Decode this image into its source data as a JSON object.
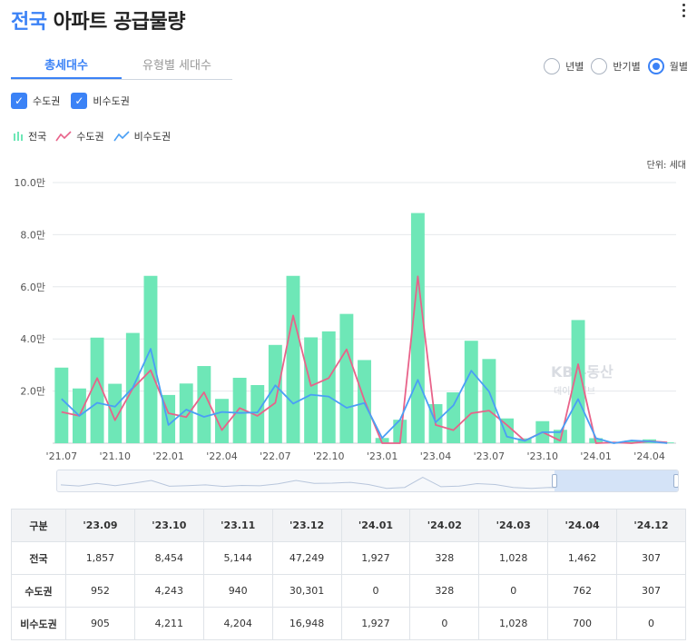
{
  "header": {
    "title_accent": "전국",
    "title_rest": " 아파트 공급물량"
  },
  "tabs": [
    {
      "label": "총세대수",
      "active": true
    },
    {
      "label": "유형별 세대수",
      "active": false
    }
  ],
  "period_options": [
    {
      "label": "년별",
      "selected": false
    },
    {
      "label": "반기별",
      "selected": false
    },
    {
      "label": "월별",
      "selected": true
    }
  ],
  "region_filters": [
    {
      "label": "수도권",
      "checked": true
    },
    {
      "label": "비수도권",
      "checked": true
    }
  ],
  "legend": [
    {
      "label": "전국",
      "color": "#6ee7b7"
    },
    {
      "label": "수도권",
      "color": "#e8638a"
    },
    {
      "label": "비수도권",
      "color": "#4a9ff5"
    }
  ],
  "unit_label": "단위: 세대",
  "watermark": {
    "logo": "KB부동산",
    "sub": "데이터허브"
  },
  "chart_data": {
    "type": "bar+line",
    "categories": [
      "21.07",
      "21.08",
      "21.09",
      "21.10",
      "21.11",
      "21.12",
      "22.01",
      "22.02",
      "22.03",
      "22.04",
      "22.05",
      "22.06",
      "22.07",
      "22.08",
      "22.09",
      "22.10",
      "22.11",
      "22.12",
      "23.01",
      "23.02",
      "23.03",
      "23.04",
      "23.05",
      "23.06",
      "23.07",
      "23.08",
      "23.09",
      "23.10",
      "23.11",
      "23.12",
      "24.01",
      "24.02",
      "24.03",
      "24.04",
      "24.12"
    ],
    "x_tick_labels": [
      "'21.07",
      "'21.10",
      "'22.01",
      "'22.04",
      "'22.07",
      "'22.10",
      "'23.01",
      "'23.04",
      "'23.07",
      "'23.10",
      "'24.01",
      "'24.04"
    ],
    "y_tick_labels": [
      "0",
      "2.0만",
      "4.0만",
      "6.0만",
      "8.0만",
      "10.0만"
    ],
    "ylim": [
      0,
      100000
    ],
    "series": [
      {
        "name": "전국",
        "kind": "bar",
        "values": [
          29000,
          21000,
          40500,
          22800,
          42300,
          64200,
          18500,
          22900,
          29600,
          17000,
          25100,
          22300,
          37700,
          64200,
          40600,
          42900,
          49600,
          31900,
          2000,
          9000,
          88300,
          15000,
          19500,
          39300,
          32300,
          9500,
          1857,
          8454,
          5144,
          47249,
          1927,
          328,
          1028,
          1462,
          307
        ]
      },
      {
        "name": "수도권",
        "kind": "line",
        "values": [
          12000,
          10500,
          25000,
          8800,
          21000,
          28000,
          11500,
          10000,
          19500,
          5000,
          13500,
          10500,
          15500,
          49000,
          22000,
          25000,
          36000,
          16500,
          0,
          0,
          64000,
          7000,
          5000,
          11500,
          12500,
          7000,
          952,
          4243,
          940,
          30301,
          0,
          328,
          0,
          762,
          307
        ]
      },
      {
        "name": "비수도권",
        "kind": "line",
        "values": [
          17000,
          10500,
          15500,
          14000,
          21300,
          36200,
          7000,
          12900,
          10100,
          12000,
          11600,
          11800,
          22200,
          15200,
          18600,
          17900,
          13600,
          15400,
          2000,
          9000,
          24300,
          8000,
          14500,
          27800,
          19800,
          2500,
          905,
          4211,
          4204,
          16948,
          1927,
          0,
          1028,
          700,
          0
        ]
      }
    ]
  },
  "table": {
    "columns": [
      "구분",
      "'23.09",
      "'23.10",
      "'23.11",
      "'23.12",
      "'24.01",
      "'24.02",
      "'24.03",
      "'24.04",
      "'24.12"
    ],
    "rows": [
      [
        "전국",
        "1,857",
        "8,454",
        "5,144",
        "47,249",
        "1,927",
        "328",
        "1,028",
        "1,462",
        "307"
      ],
      [
        "수도권",
        "952",
        "4,243",
        "940",
        "30,301",
        "0",
        "328",
        "0",
        "762",
        "307"
      ],
      [
        "비수도권",
        "905",
        "4,211",
        "4,204",
        "16,948",
        "1,927",
        "0",
        "1,028",
        "700",
        "0"
      ]
    ]
  }
}
